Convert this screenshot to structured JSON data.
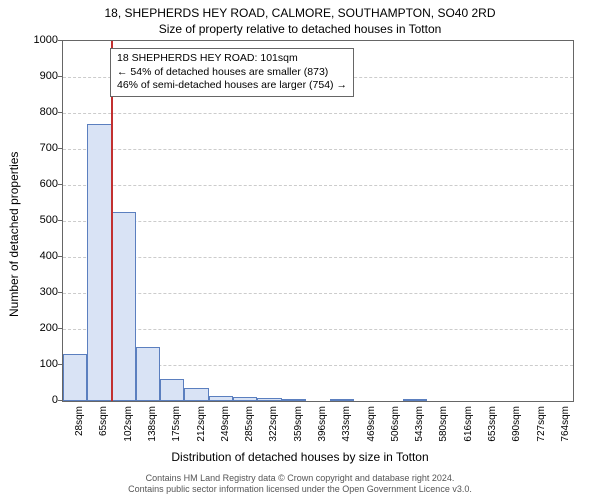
{
  "titles": {
    "main": "18, SHEPHERDS HEY ROAD, CALMORE, SOUTHAMPTON, SO40 2RD",
    "sub": "Size of property relative to detached houses in Totton"
  },
  "axes": {
    "ylabel": "Number of detached properties",
    "xlabel": "Distribution of detached houses by size in Totton",
    "ylim": [
      0,
      1000
    ],
    "ytick_step": 100,
    "label_fontsize": 12,
    "tick_fontsize": 11
  },
  "chart": {
    "type": "histogram",
    "x_labels": [
      "28sqm",
      "65sqm",
      "102sqm",
      "138sqm",
      "175sqm",
      "212sqm",
      "249sqm",
      "285sqm",
      "322sqm",
      "359sqm",
      "396sqm",
      "433sqm",
      "469sqm",
      "506sqm",
      "543sqm",
      "580sqm",
      "616sqm",
      "653sqm",
      "690sqm",
      "727sqm",
      "764sqm"
    ],
    "values": [
      130,
      770,
      525,
      150,
      60,
      35,
      15,
      10,
      8,
      5,
      0,
      3,
      0,
      0,
      2,
      0,
      0,
      0,
      0,
      0,
      0
    ],
    "bar_fill": "#d9e3f5",
    "bar_stroke": "#5b7fbf",
    "grid_color": "#cccccc",
    "background_color": "#ffffff",
    "border_color": "#666666"
  },
  "marker": {
    "position_sqm": 101,
    "color": "#c23030"
  },
  "callout": {
    "line1": "18 SHEPHERDS HEY ROAD: 101sqm",
    "line2": "← 54% of detached houses are smaller (873)",
    "line3": "46% of semi-detached houses are larger (754) →"
  },
  "footer": {
    "line1": "Contains HM Land Registry data © Crown copyright and database right 2024.",
    "line2": "Contains public sector information licensed under the Open Government Licence v3.0."
  }
}
